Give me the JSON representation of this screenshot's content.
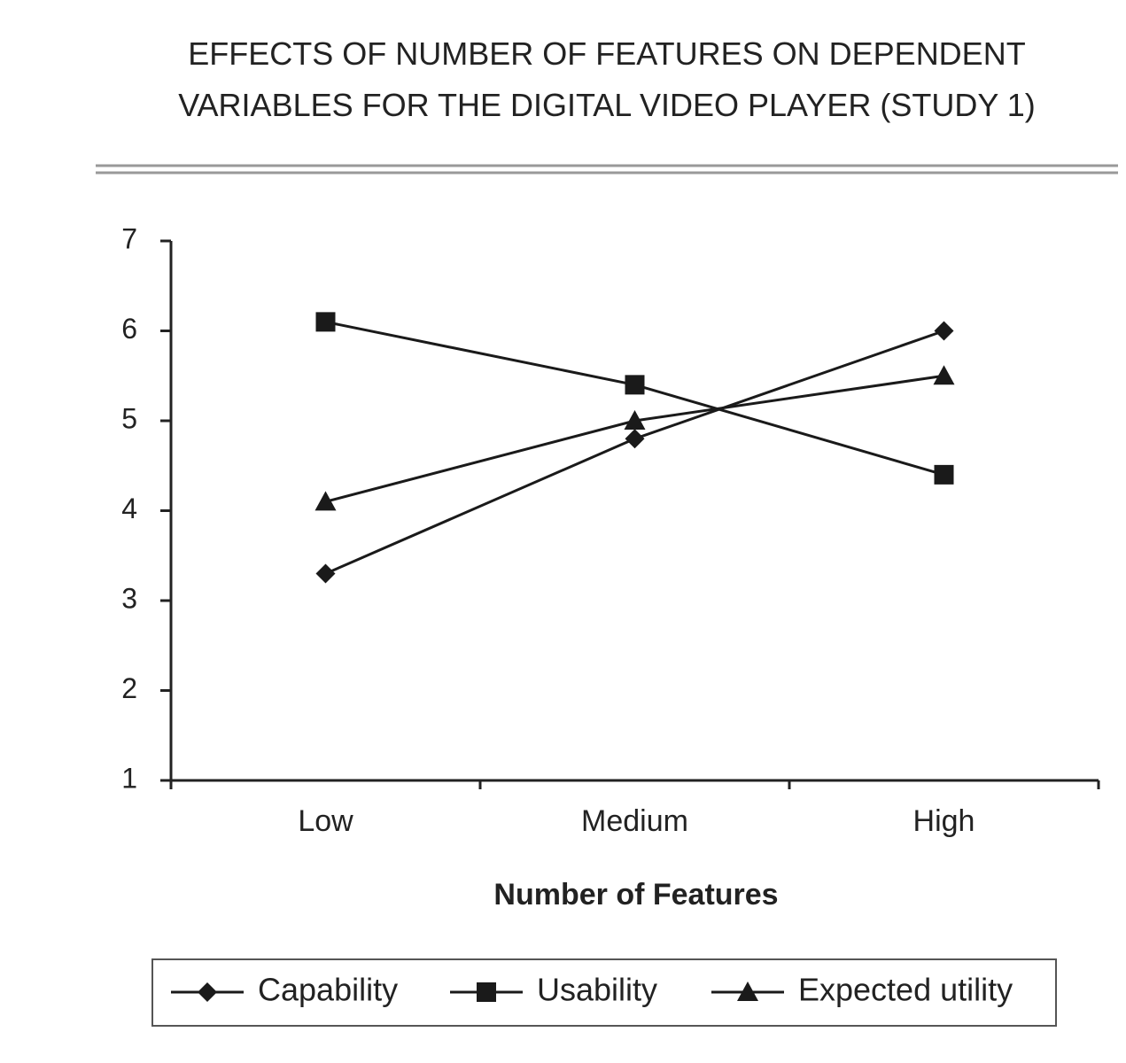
{
  "chart_data": {
    "type": "line",
    "title": "EFFECTS OF NUMBER OF FEATURES ON DEPENDENT VARIABLES FOR THE DIGITAL VIDEO PLAYER (STUDY 1)",
    "x_label": "Number of Features",
    "categories": [
      "Low",
      "Medium",
      "High"
    ],
    "series": [
      {
        "name": "Capability",
        "color": "#1a1a1a",
        "marker": "diamond",
        "values": [
          3.3,
          4.8,
          6.0
        ]
      },
      {
        "name": "Usability",
        "color": "#1a1a1a",
        "marker": "square",
        "values": [
          6.1,
          5.4,
          4.4
        ]
      },
      {
        "name": "Expected utility",
        "color": "#1a1a1a",
        "marker": "triangle",
        "values": [
          4.1,
          5.0,
          5.5
        ]
      }
    ],
    "ylim": [
      1,
      7
    ],
    "yticks": [
      1,
      2,
      3,
      4,
      5,
      6,
      7
    ],
    "grid": false,
    "legend": "bottom"
  }
}
